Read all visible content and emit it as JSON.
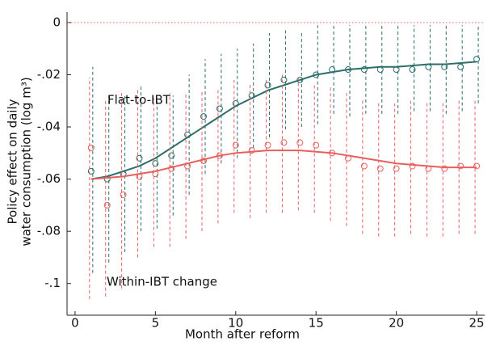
{
  "chart_data": {
    "type": "coefplot",
    "x_label": "Month after reform",
    "y_label": [
      "Policy effect on daily",
      "water consumption (log m³)"
    ],
    "xlim": [
      -0.5,
      25.5
    ],
    "ylim": [
      -0.11,
      0.004
    ],
    "xticks": [
      0,
      5,
      10,
      15,
      20,
      25
    ],
    "yticks": [
      0,
      {
        "value": -0.02,
        "label": "-.02"
      },
      {
        "value": -0.04,
        "label": "-.04"
      },
      {
        "value": -0.06,
        "label": "-.06"
      },
      {
        "value": -0.08,
        "label": "-.08"
      },
      {
        "value": -0.1,
        "label": "-.1"
      }
    ],
    "hline": 0,
    "hline_color": "#e8605e",
    "x": [
      1,
      2,
      3,
      4,
      5,
      6,
      7,
      8,
      9,
      10,
      11,
      12,
      13,
      14,
      15,
      16,
      17,
      18,
      19,
      20,
      21,
      22,
      23,
      24,
      25
    ],
    "series": [
      {
        "name": "Flat-to-IBT",
        "color": "#2a6f6a",
        "values": [
          -0.057,
          -0.06,
          -0.058,
          -0.052,
          -0.054,
          -0.051,
          -0.043,
          -0.036,
          -0.033,
          -0.031,
          -0.028,
          -0.024,
          -0.022,
          -0.022,
          -0.02,
          -0.018,
          -0.018,
          -0.018,
          -0.018,
          -0.018,
          -0.018,
          -0.017,
          -0.017,
          -0.017,
          -0.014
        ],
        "lower": [
          -0.096,
          -0.092,
          -0.088,
          -0.08,
          -0.079,
          -0.074,
          -0.066,
          -0.058,
          -0.054,
          -0.052,
          -0.048,
          -0.044,
          -0.041,
          -0.04,
          -0.039,
          -0.035,
          -0.036,
          -0.035,
          -0.035,
          -0.035,
          -0.034,
          -0.034,
          -0.035,
          -0.034,
          -0.031
        ],
        "upper": [
          -0.017,
          -0.028,
          -0.028,
          -0.024,
          -0.029,
          -0.028,
          -0.02,
          -0.014,
          -0.012,
          -0.01,
          -0.008,
          -0.004,
          -0.003,
          -0.004,
          -0.001,
          -0.001,
          -0.001,
          -0.001,
          -0.001,
          -0.001,
          -0.001,
          -0.001,
          -0.001,
          -0.001,
          -0.001
        ],
        "fit": [
          -0.06,
          -0.059,
          -0.057,
          -0.055,
          -0.052,
          -0.048,
          -0.044,
          -0.04,
          -0.036,
          -0.032,
          -0.029,
          -0.026,
          -0.024,
          -0.022,
          -0.02,
          -0.019,
          -0.018,
          -0.0175,
          -0.017,
          -0.017,
          -0.0165,
          -0.016,
          -0.016,
          -0.0155,
          -0.015
        ]
      },
      {
        "name": "Within-IBT change",
        "color": "#e8605e",
        "values": [
          -0.048,
          -0.07,
          -0.066,
          -0.059,
          -0.058,
          -0.056,
          -0.055,
          -0.053,
          -0.051,
          -0.047,
          -0.049,
          -0.047,
          -0.046,
          -0.046,
          -0.047,
          -0.05,
          -0.052,
          -0.055,
          -0.056,
          -0.056,
          -0.055,
          -0.056,
          -0.056,
          -0.055,
          -0.055
        ],
        "lower": [
          -0.106,
          -0.105,
          -0.102,
          -0.09,
          -0.086,
          -0.086,
          -0.083,
          -0.08,
          -0.077,
          -0.073,
          -0.075,
          -0.073,
          -0.073,
          -0.072,
          -0.073,
          -0.076,
          -0.078,
          -0.081,
          -0.082,
          -0.082,
          -0.081,
          -0.082,
          -0.082,
          -0.081,
          -0.081
        ],
        "upper": [
          -0.021,
          -0.03,
          -0.026,
          -0.025,
          -0.029,
          -0.027,
          -0.027,
          -0.026,
          -0.025,
          -0.022,
          -0.023,
          -0.022,
          -0.02,
          -0.021,
          -0.023,
          -0.024,
          -0.027,
          -0.029,
          -0.03,
          -0.031,
          -0.03,
          -0.03,
          -0.03,
          -0.03,
          -0.03
        ],
        "fit": [
          -0.06,
          -0.0595,
          -0.059,
          -0.058,
          -0.057,
          -0.0555,
          -0.054,
          -0.0525,
          -0.051,
          -0.05,
          -0.0495,
          -0.049,
          -0.049,
          -0.049,
          -0.0495,
          -0.05,
          -0.051,
          -0.052,
          -0.053,
          -0.054,
          -0.0545,
          -0.055,
          -0.0555,
          -0.0555,
          -0.0555
        ]
      }
    ]
  }
}
